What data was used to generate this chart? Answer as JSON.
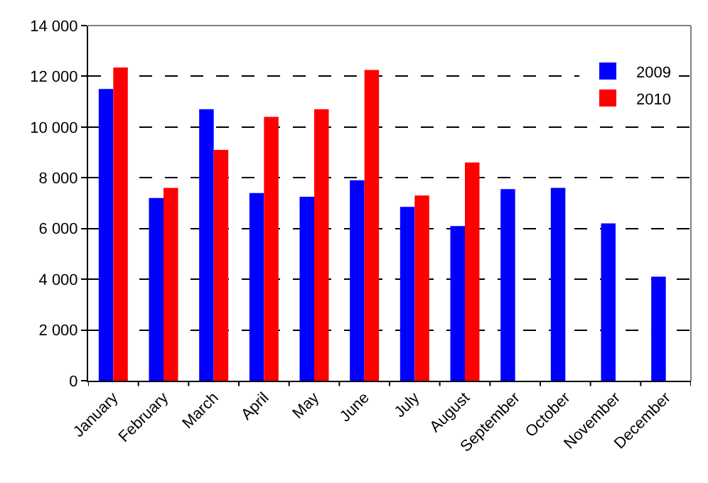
{
  "chart_data": {
    "type": "bar",
    "categories": [
      "January",
      "February",
      "March",
      "April",
      "May",
      "June",
      "July",
      "August",
      "September",
      "October",
      "November",
      "December"
    ],
    "series": [
      {
        "name": "2009",
        "color": "#0000ff",
        "values": [
          11500,
          7200,
          10700,
          7400,
          7250,
          7900,
          6850,
          6100,
          7550,
          7600,
          6200,
          4100
        ]
      },
      {
        "name": "2010",
        "color": "#ff0000",
        "values": [
          12350,
          7600,
          9100,
          10400,
          10700,
          12250,
          7300,
          8600,
          null,
          null,
          null,
          null
        ]
      }
    ],
    "ylim": [
      0,
      14000
    ],
    "yticks": [
      0,
      {
        "value": 2000,
        "label": "2 000"
      },
      {
        "value": 4000,
        "label": "4 000"
      },
      {
        "value": 6000,
        "label": "6 000"
      },
      {
        "value": 8000,
        "label": "8 000"
      },
      {
        "value": 10000,
        "label": "10 000"
      },
      {
        "value": 12000,
        "label": "12 000"
      },
      {
        "value": 14000,
        "label": "14 000"
      }
    ],
    "grid": "y",
    "legend": "top right"
  }
}
